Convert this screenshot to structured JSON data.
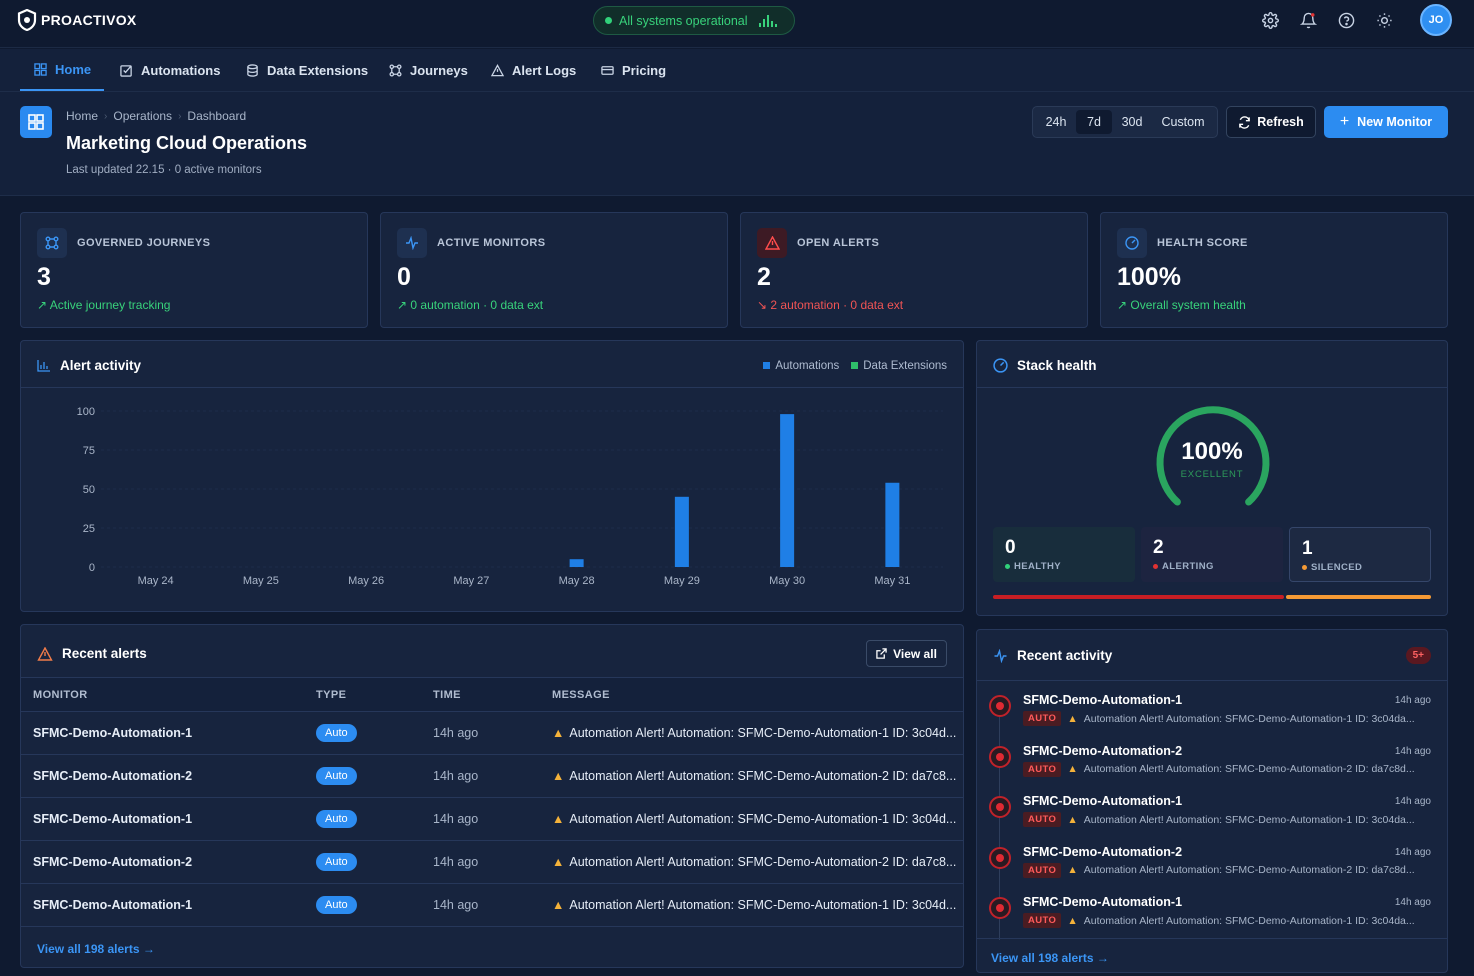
{
  "app": {
    "name": "PROACTIVOX",
    "status": "All systems operational",
    "user_initials": "JO"
  },
  "nav": [
    {
      "label": "Home",
      "icon": "grid-icon"
    },
    {
      "label": "Automations",
      "icon": "check-square-icon"
    },
    {
      "label": "Data Extensions",
      "icon": "database-icon"
    },
    {
      "label": "Journeys",
      "icon": "nodes-icon"
    },
    {
      "label": "Alert Logs",
      "icon": "warning-icon"
    },
    {
      "label": "Pricing",
      "icon": "card-icon"
    }
  ],
  "header": {
    "breadcrumb": [
      "Home",
      "Operations",
      "Dashboard"
    ],
    "title": "Marketing Cloud Operations",
    "updated": "Last updated 22.15 · 0 active monitors",
    "ranges": [
      "24h",
      "7d",
      "30d",
      "Custom"
    ],
    "selected_range": "7d",
    "refresh_label": "Refresh",
    "new_label": "New Monitor"
  },
  "stats": [
    {
      "label": "GOVERNED JOURNEYS",
      "value": "3",
      "sub": "Active journey tracking",
      "trend": "up",
      "icon": "journey-icon"
    },
    {
      "label": "ACTIVE MONITORS",
      "value": "0",
      "sub": "0 automation · 0 data ext",
      "trend": "up",
      "icon": "pulse-icon"
    },
    {
      "label": "OPEN ALERTS",
      "value": "2",
      "sub": "2 automation · 0 data ext",
      "trend": "down",
      "icon": "alert-triangle-icon"
    },
    {
      "label": "HEALTH SCORE",
      "value": "100%",
      "sub": "Overall system health",
      "trend": "up",
      "icon": "gauge-icon"
    }
  ],
  "alert_activity": {
    "title": "Alert activity",
    "legend": [
      "Automations",
      "Data Extensions"
    ],
    "colors": {
      "automations": "#1f7fe6",
      "data_extensions": "#2fbf6a"
    }
  },
  "chart_data": {
    "type": "bar",
    "categories": [
      "May 24",
      "May 25",
      "May 26",
      "May 27",
      "May 28",
      "May 29",
      "May 30",
      "May 31"
    ],
    "series": [
      {
        "name": "Automations",
        "values": [
          0,
          0,
          0,
          0,
          5,
          45,
          98,
          54
        ]
      },
      {
        "name": "Data Extensions",
        "values": [
          0,
          0,
          0,
          0,
          0,
          0,
          0,
          0
        ]
      }
    ],
    "yticks": [
      100,
      75,
      50,
      25,
      0
    ],
    "ylim": [
      0,
      100
    ],
    "title": "",
    "xlabel": "",
    "ylabel": "",
    "grid": true,
    "legend_position": "top-right"
  },
  "stack_health": {
    "title": "Stack health",
    "score": "100%",
    "score_value": 100,
    "grade": "EXCELLENT",
    "boxes": [
      {
        "count": "0",
        "label": "HEALTHY",
        "color": "#31d17a"
      },
      {
        "count": "2",
        "label": "ALERTING",
        "color": "#e03232"
      },
      {
        "count": "1",
        "label": "SILENCED",
        "color": "#f59a35"
      }
    ],
    "bar_split": {
      "alerting": 2,
      "silenced": 1
    }
  },
  "recent_alerts": {
    "title": "Recent alerts",
    "view_all": "View all",
    "columns": [
      "MONITOR",
      "TYPE",
      "TIME",
      "MESSAGE"
    ],
    "rows": [
      {
        "monitor": "SFMC-Demo-Automation-1",
        "type": "Auto",
        "time": "14h ago",
        "message": "Automation Alert! Automation: SFMC-Demo-Automation-1 ID: 3c04d..."
      },
      {
        "monitor": "SFMC-Demo-Automation-2",
        "type": "Auto",
        "time": "14h ago",
        "message": "Automation Alert! Automation: SFMC-Demo-Automation-2 ID: da7c8..."
      },
      {
        "monitor": "SFMC-Demo-Automation-1",
        "type": "Auto",
        "time": "14h ago",
        "message": "Automation Alert! Automation: SFMC-Demo-Automation-1 ID: 3c04d..."
      },
      {
        "monitor": "SFMC-Demo-Automation-2",
        "type": "Auto",
        "time": "14h ago",
        "message": "Automation Alert! Automation: SFMC-Demo-Automation-2 ID: da7c8..."
      },
      {
        "monitor": "SFMC-Demo-Automation-1",
        "type": "Auto",
        "time": "14h ago",
        "message": "Automation Alert! Automation: SFMC-Demo-Automation-1 ID: 3c04d..."
      }
    ],
    "footer": "View all 198 alerts →"
  },
  "recent_activity": {
    "title": "Recent activity",
    "badge": "5+",
    "items": [
      {
        "name": "SFMC-Demo-Automation-1",
        "time": "14h ago",
        "tag": "AUTO",
        "message": "Automation Alert! Automation: SFMC-Demo-Automation-1 ID: 3c04da..."
      },
      {
        "name": "SFMC-Demo-Automation-2",
        "time": "14h ago",
        "tag": "AUTO",
        "message": "Automation Alert! Automation: SFMC-Demo-Automation-2 ID: da7c8d..."
      },
      {
        "name": "SFMC-Demo-Automation-1",
        "time": "14h ago",
        "tag": "AUTO",
        "message": "Automation Alert! Automation: SFMC-Demo-Automation-1 ID: 3c04da..."
      },
      {
        "name": "SFMC-Demo-Automation-2",
        "time": "14h ago",
        "tag": "AUTO",
        "message": "Automation Alert! Automation: SFMC-Demo-Automation-2 ID: da7c8d..."
      },
      {
        "name": "SFMC-Demo-Automation-1",
        "time": "14h ago",
        "tag": "AUTO",
        "message": "Automation Alert! Automation: SFMC-Demo-Automation-1 ID: 3c04da..."
      }
    ],
    "footer": "View all 198 alerts →"
  }
}
